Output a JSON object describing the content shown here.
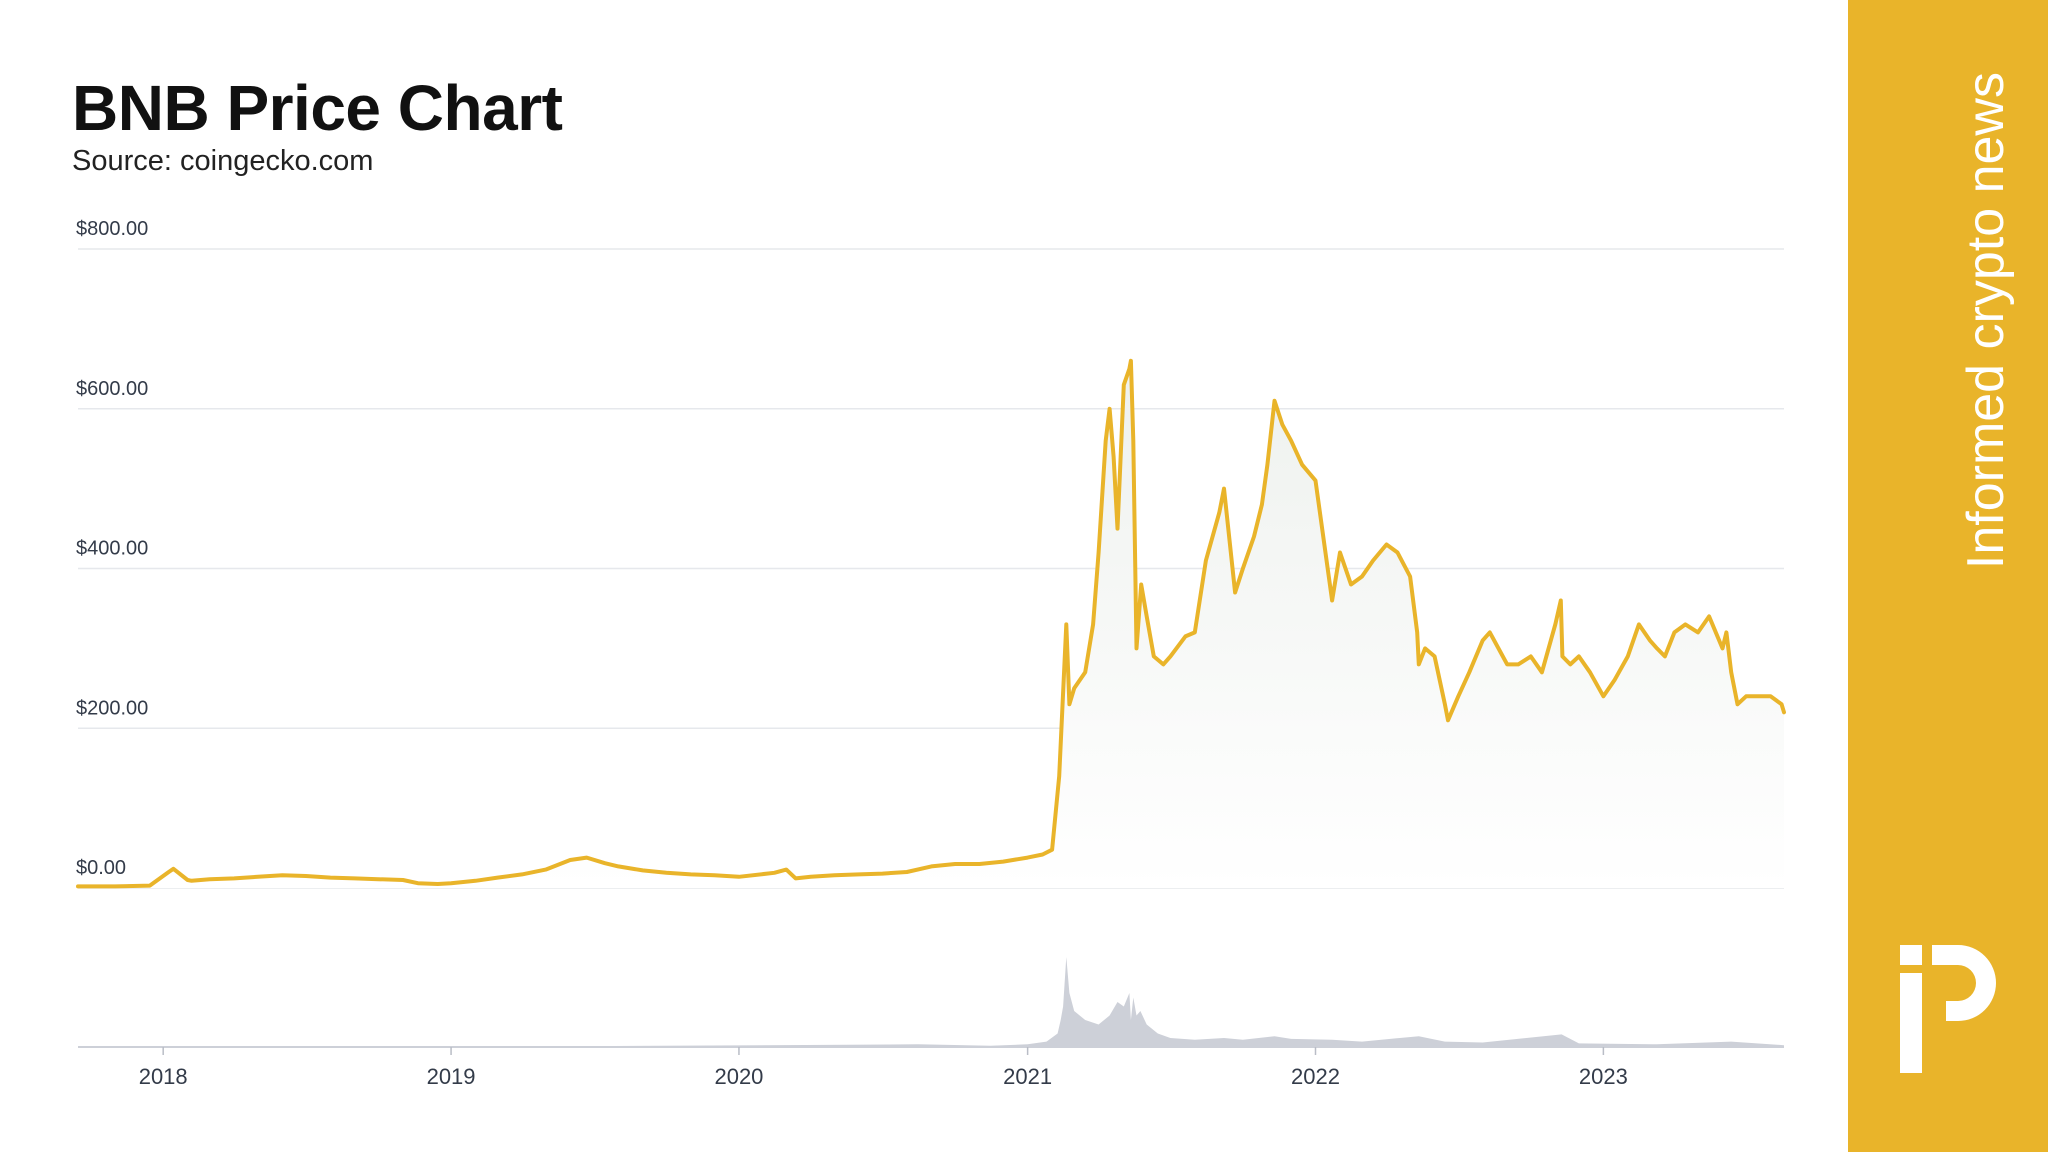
{
  "header": {
    "title": "BNB Price Chart",
    "subtitle": "Source: coingecko.com"
  },
  "sidebar": {
    "tagline": "Informed crypto news",
    "logo_icon": "ip-logo-icon",
    "bg_color": "#e9b42a"
  },
  "colors": {
    "line": "#e9b42a",
    "area_top": "#eef1ee",
    "area_bottom": "#ffffff",
    "grid": "#e6e8ec",
    "volume": "#cdd0d8",
    "axis_text": "#333b49"
  },
  "chart_data": {
    "type": "line",
    "title": "BNB Price Chart",
    "y_ticks": [
      "$800.00",
      "$600.00",
      "$400.00",
      "$200.00",
      "$0.00"
    ],
    "y_tick_values": [
      800,
      600,
      400,
      200,
      0
    ],
    "x_ticks": [
      "2018",
      "2019",
      "2020",
      "2021",
      "2022",
      "2023"
    ],
    "x_tick_values": [
      "2018-01-01",
      "2019-01-01",
      "2020-01-01",
      "2021-01-01",
      "2022-01-01",
      "2023-01-01"
    ],
    "x_range": [
      "2017-09-15",
      "2023-08-18"
    ],
    "ylim": [
      0,
      800
    ],
    "grid": true,
    "series": [
      {
        "x": [
          "2017-09-15",
          "2017-11-01",
          "2017-12-15",
          "2018-01-08",
          "2018-01-14",
          "2018-02-01",
          "2018-02-06",
          "2018-03-01",
          "2018-04-01",
          "2018-05-01",
          "2018-06-01",
          "2018-07-01",
          "2018-08-01",
          "2018-09-01",
          "2018-10-01",
          "2018-11-01",
          "2018-11-20",
          "2018-12-15",
          "2019-01-01",
          "2019-02-01",
          "2019-03-01",
          "2019-04-01",
          "2019-05-01",
          "2019-06-01",
          "2019-06-22",
          "2019-07-15",
          "2019-08-01",
          "2019-09-01",
          "2019-10-01",
          "2019-11-01",
          "2019-12-01",
          "2020-01-01",
          "2020-02-15",
          "2020-03-01",
          "2020-03-13",
          "2020-04-01",
          "2020-05-01",
          "2020-06-01",
          "2020-07-01",
          "2020-08-01",
          "2020-09-01",
          "2020-10-01",
          "2020-11-01",
          "2020-12-01",
          "2021-01-01",
          "2021-01-20",
          "2021-02-01",
          "2021-02-10",
          "2021-02-19",
          "2021-02-23",
          "2021-03-01",
          "2021-03-15",
          "2021-03-25",
          "2021-04-01",
          "2021-04-10",
          "2021-04-15",
          "2021-04-20",
          "2021-04-25",
          "2021-05-03",
          "2021-05-10",
          "2021-05-12",
          "2021-05-15",
          "2021-05-19",
          "2021-05-25",
          "2021-06-01",
          "2021-06-10",
          "2021-06-22",
          "2021-07-01",
          "2021-07-20",
          "2021-08-01",
          "2021-08-15",
          "2021-09-01",
          "2021-09-07",
          "2021-09-21",
          "2021-10-01",
          "2021-10-15",
          "2021-10-25",
          "2021-11-01",
          "2021-11-10",
          "2021-11-20",
          "2021-12-01",
          "2021-12-15",
          "2022-01-01",
          "2022-01-22",
          "2022-02-01",
          "2022-02-15",
          "2022-03-01",
          "2022-03-15",
          "2022-04-01",
          "2022-04-15",
          "2022-05-01",
          "2022-05-10",
          "2022-05-12",
          "2022-05-20",
          "2022-06-01",
          "2022-06-14",
          "2022-06-18",
          "2022-07-01",
          "2022-07-15",
          "2022-08-01",
          "2022-08-10",
          "2022-09-01",
          "2022-09-15",
          "2022-10-01",
          "2022-10-15",
          "2022-11-01",
          "2022-11-08",
          "2022-11-10",
          "2022-11-20",
          "2022-12-01",
          "2022-12-15",
          "2023-01-01",
          "2023-01-15",
          "2023-02-01",
          "2023-02-15",
          "2023-03-01",
          "2023-03-10",
          "2023-03-20",
          "2023-04-01",
          "2023-04-15",
          "2023-05-01",
          "2023-05-15",
          "2023-06-01",
          "2023-06-06",
          "2023-06-12",
          "2023-06-20",
          "2023-07-01",
          "2023-07-15",
          "2023-08-01",
          "2023-08-15",
          "2023-08-18"
        ],
        "y": [
          2,
          2,
          3,
          20,
          24,
          10,
          9,
          11,
          12,
          14,
          16,
          15,
          13,
          12,
          11,
          10,
          6,
          5,
          6,
          9,
          13,
          17,
          23,
          35,
          38,
          31,
          27,
          22,
          19,
          17,
          16,
          14,
          19,
          23,
          12,
          14,
          16,
          17,
          18,
          20,
          27,
          30,
          30,
          33,
          38,
          42,
          48,
          140,
          330,
          230,
          250,
          270,
          330,
          420,
          560,
          600,
          540,
          450,
          630,
          650,
          660,
          560,
          300,
          380,
          340,
          290,
          280,
          290,
          315,
          320,
          410,
          470,
          500,
          370,
          400,
          440,
          480,
          530,
          610,
          580,
          560,
          530,
          510,
          360,
          420,
          380,
          390,
          410,
          430,
          420,
          390,
          320,
          280,
          300,
          290,
          230,
          210,
          240,
          270,
          310,
          320,
          280,
          280,
          290,
          270,
          330,
          360,
          290,
          280,
          290,
          270,
          240,
          260,
          290,
          330,
          310,
          300,
          290,
          320,
          330,
          320,
          340,
          300,
          320,
          270,
          230,
          240,
          240,
          240,
          230,
          220
        ]
      }
    ],
    "volume": {
      "x": [
        "2017-09-15",
        "2019-06-01",
        "2020-08-15",
        "2020-11-15",
        "2021-01-01",
        "2021-01-25",
        "2021-02-08",
        "2021-02-12",
        "2021-02-15",
        "2021-02-19",
        "2021-02-23",
        "2021-03-01",
        "2021-03-15",
        "2021-04-01",
        "2021-04-15",
        "2021-04-25",
        "2021-05-03",
        "2021-05-10",
        "2021-05-12",
        "2021-05-15",
        "2021-05-19",
        "2021-05-24",
        "2021-06-01",
        "2021-06-15",
        "2021-07-01",
        "2021-08-01",
        "2021-09-07",
        "2021-10-01",
        "2021-11-10",
        "2021-12-01",
        "2022-01-22",
        "2022-03-01",
        "2022-05-12",
        "2022-06-14",
        "2022-08-01",
        "2022-11-09",
        "2022-12-01",
        "2023-03-10",
        "2023-06-12",
        "2023-08-18"
      ],
      "y": [
        0.3,
        0.8,
        3,
        1.5,
        3,
        6,
        15,
        30,
        45,
        100,
        60,
        40,
        30,
        25,
        35,
        50,
        45,
        60,
        30,
        55,
        35,
        40,
        25,
        15,
        10,
        8,
        10,
        8,
        12,
        9,
        8,
        6,
        12,
        6,
        5,
        14,
        4,
        3,
        6,
        2
      ]
    }
  }
}
